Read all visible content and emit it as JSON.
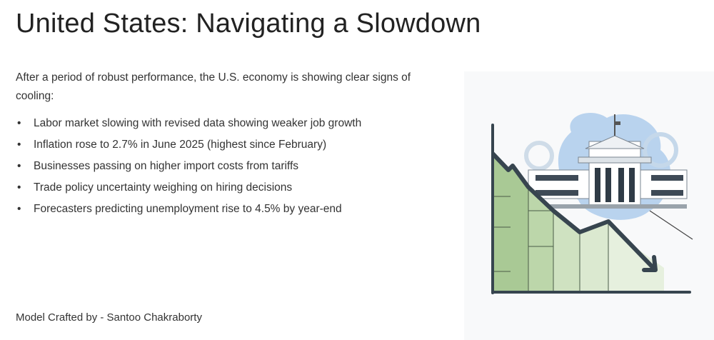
{
  "header": {
    "title": "United States: Navigating a Slowdown"
  },
  "intro": "After a period of robust performance, the U.S. economy is showing clear signs of cooling:",
  "bullets": [
    "Labor market slowing with revised data showing weaker job growth",
    "Inflation rose to 2.7% in June 2025 (highest since February)",
    "Businesses passing on higher import costs from tariffs",
    "Trade policy uncertainty weighing on hiring decisions",
    "Forecasters predicting unemployment rise to 4.5% by year-end"
  ],
  "footer": "Model Crafted by - Santoo Chakraborty"
}
